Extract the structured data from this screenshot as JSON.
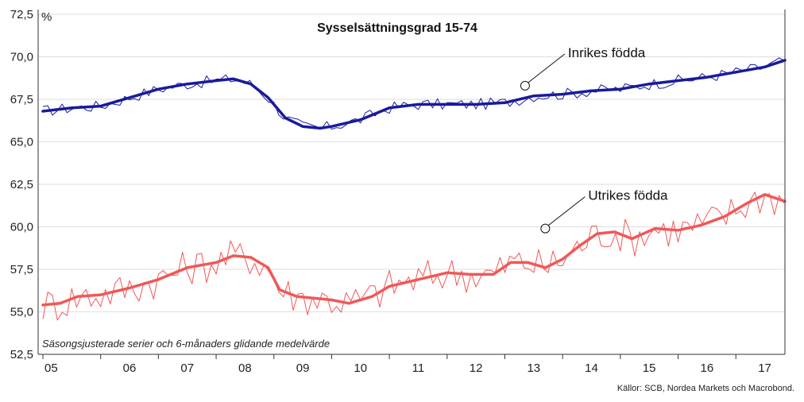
{
  "chart_data": {
    "type": "line",
    "title": "Sysselsättningsgrad 15-74",
    "ylabel": "%",
    "note": "Säsongsjusterade serier och 6-månaders glidande medelvärde",
    "source": "Källor: SCB, Nordea Markets och Macrobond.",
    "ylim": [
      52.5,
      72.5
    ],
    "yticks": [
      "72,5",
      "70,0",
      "67,5",
      "65,0",
      "62,5",
      "60,0",
      "57,5",
      "55,0",
      "52,5"
    ],
    "xticks": [
      "05",
      "06",
      "07",
      "08",
      "09",
      "10",
      "11",
      "12",
      "13",
      "14",
      "15",
      "16",
      "17"
    ],
    "xlim": [
      2005.0,
      2017.85
    ],
    "grid": true,
    "colors": {
      "inrikes": "#1a1a9c",
      "utrikes": "#f05858"
    },
    "series": [
      {
        "name": "Inrikes födda",
        "x": [
          2005.0,
          2005.5,
          2006.0,
          2006.5,
          2007.0,
          2007.5,
          2008.0,
          2008.3,
          2008.6,
          2008.9,
          2009.2,
          2009.5,
          2009.8,
          2010.0,
          2010.5,
          2011.0,
          2011.5,
          2012.0,
          2012.5,
          2013.0,
          2013.5,
          2014.0,
          2014.5,
          2015.0,
          2015.5,
          2016.0,
          2016.5,
          2017.0,
          2017.5,
          2017.85
        ],
        "values": [
          66.8,
          67.0,
          67.1,
          67.6,
          68.1,
          68.4,
          68.6,
          68.7,
          68.4,
          67.6,
          66.4,
          65.9,
          65.8,
          65.9,
          66.3,
          67.0,
          67.2,
          67.2,
          67.2,
          67.3,
          67.7,
          67.8,
          68.0,
          68.1,
          68.4,
          68.6,
          68.8,
          69.1,
          69.4,
          69.8
        ]
      },
      {
        "name": "Utrikes födda",
        "x": [
          2005.0,
          2005.3,
          2005.6,
          2006.0,
          2006.5,
          2007.0,
          2007.5,
          2008.0,
          2008.3,
          2008.6,
          2008.9,
          2009.1,
          2009.4,
          2009.7,
          2010.0,
          2010.3,
          2010.7,
          2011.0,
          2011.5,
          2012.0,
          2012.4,
          2012.8,
          2013.1,
          2013.4,
          2013.7,
          2014.0,
          2014.3,
          2014.6,
          2014.9,
          2015.2,
          2015.6,
          2016.0,
          2016.4,
          2016.8,
          2017.2,
          2017.5,
          2017.85
        ],
        "values": [
          55.4,
          55.5,
          55.9,
          56.0,
          56.4,
          56.9,
          57.6,
          57.9,
          58.3,
          58.2,
          57.6,
          56.3,
          55.9,
          55.8,
          55.7,
          55.5,
          55.9,
          56.5,
          56.9,
          57.3,
          57.2,
          57.2,
          57.9,
          57.9,
          57.6,
          58.1,
          58.9,
          59.6,
          59.7,
          59.3,
          59.9,
          59.8,
          60.1,
          60.6,
          61.4,
          61.9,
          61.5
        ]
      }
    ],
    "annotations": [
      {
        "text": "Inrikes födda",
        "x": 2013.35,
        "y": 68.3
      },
      {
        "text": "Utrikes födda",
        "x": 2013.7,
        "y": 59.9
      }
    ]
  }
}
